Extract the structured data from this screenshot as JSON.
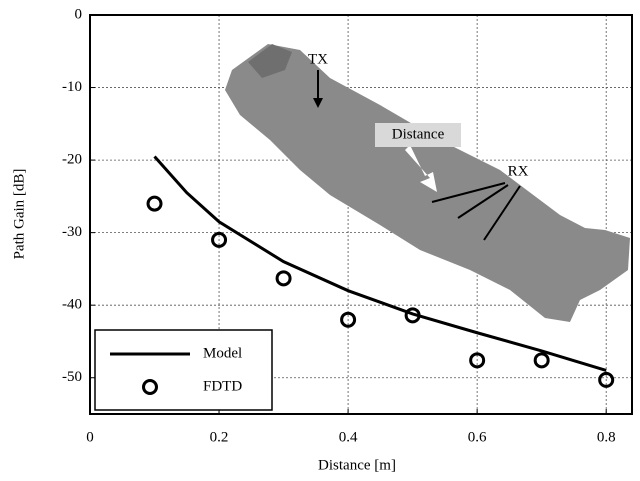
{
  "chart_data": {
    "type": "line",
    "xlabel": "Distance [m]",
    "ylabel": "Path Gain [dB]",
    "xlim": [
      0,
      0.84
    ],
    "ylim": [
      -55,
      0
    ],
    "xticks": [
      0,
      0.2,
      0.4,
      0.6,
      0.8
    ],
    "yticks": [
      0,
      -10,
      -20,
      -30,
      -40,
      -50
    ],
    "grid": true,
    "legend": "lower left",
    "annotations": [
      "TX",
      "Distance",
      "RX"
    ],
    "series": [
      {
        "name": "Model",
        "style": "line",
        "color": "#000000",
        "x": [
          0.1,
          0.15,
          0.2,
          0.3,
          0.4,
          0.5,
          0.6,
          0.7,
          0.8
        ],
        "values": [
          -19.5,
          -24.5,
          -28.5,
          -34,
          -38,
          -41.2,
          -43.8,
          -46.3,
          -49
        ]
      },
      {
        "name": "FDTD",
        "style": "marker",
        "color": "#000000",
        "x": [
          0.1,
          0.2,
          0.3,
          0.4,
          0.5,
          0.6,
          0.7,
          0.8
        ],
        "values": [
          -26,
          -31,
          -36.3,
          -42,
          -41.4,
          -47.6,
          -47.6,
          -50.3
        ]
      }
    ]
  }
}
